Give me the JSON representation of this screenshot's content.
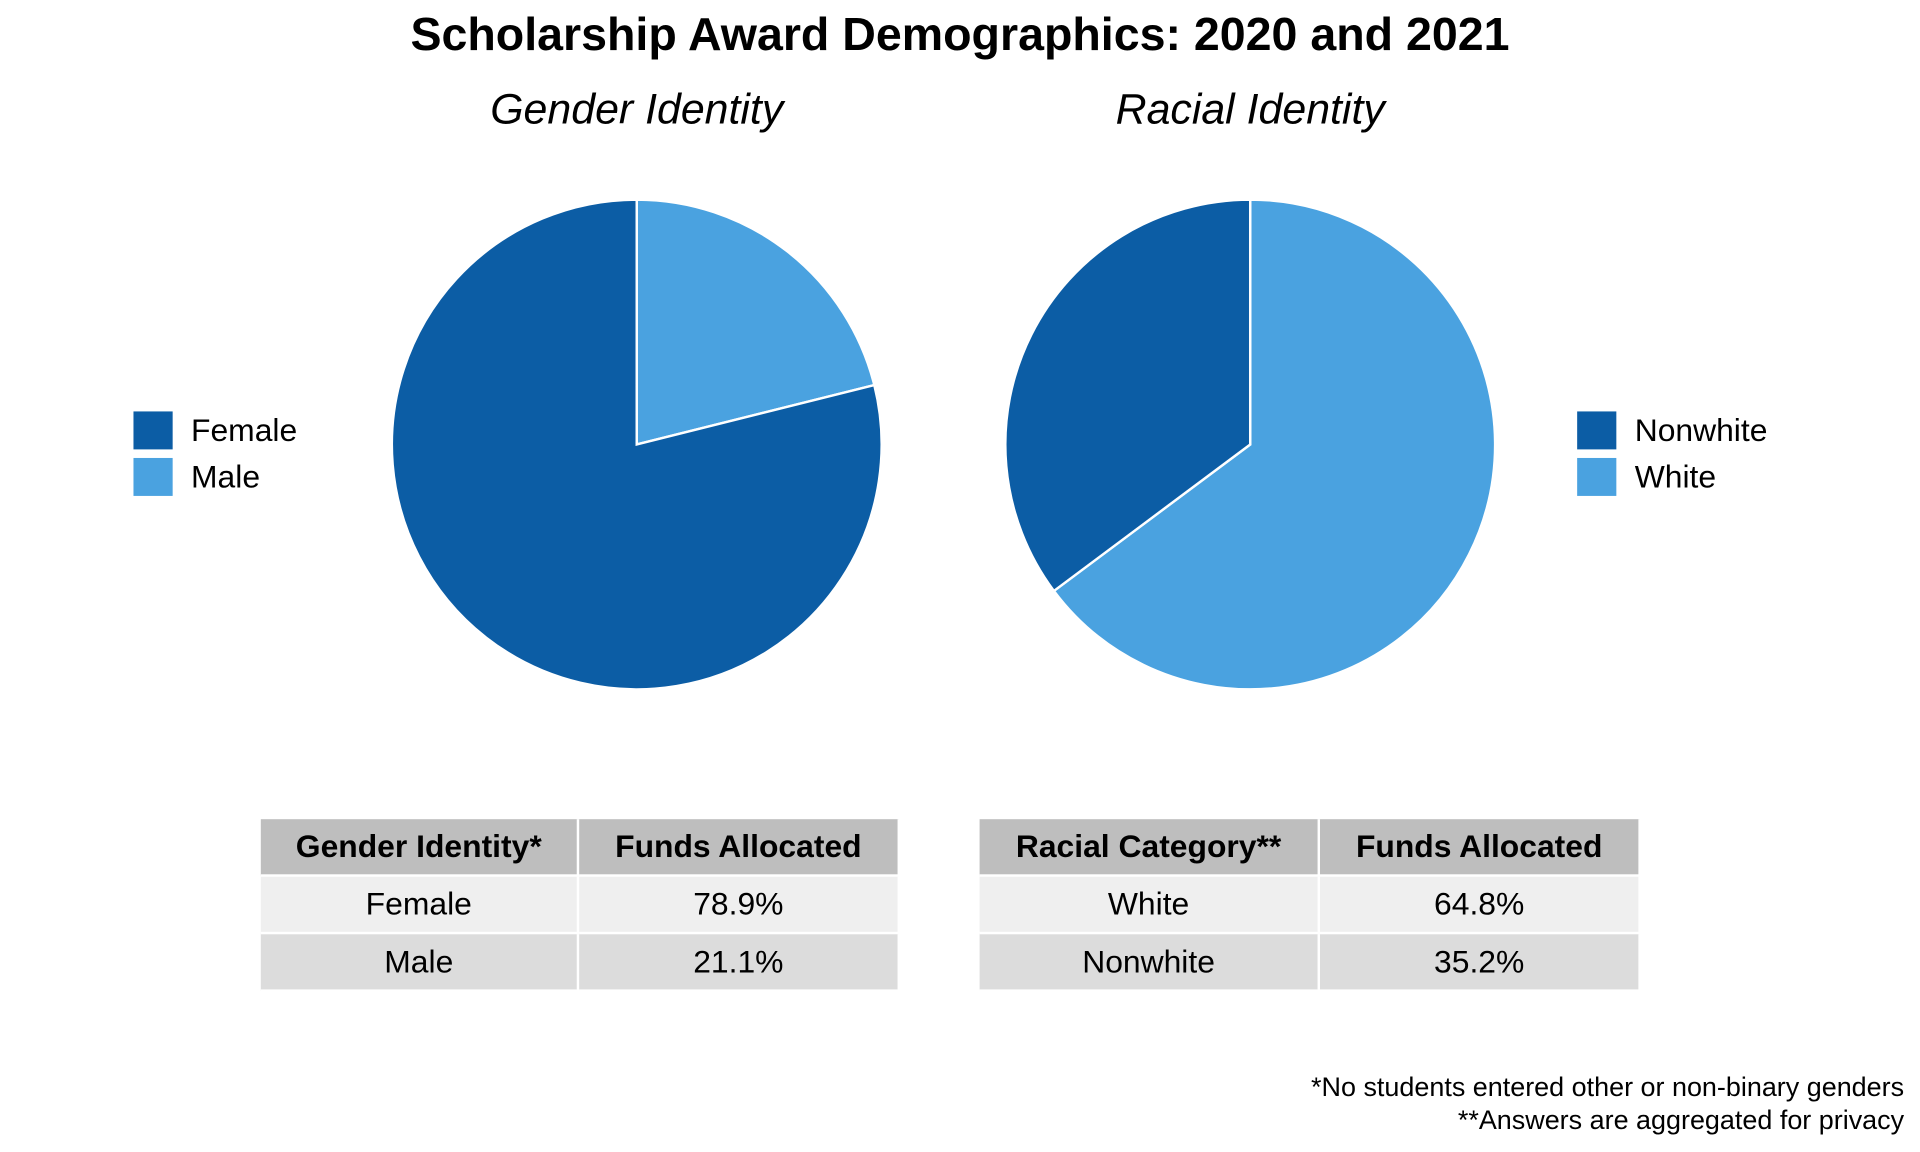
{
  "title": "Scholarship Award Demographics: 2020 and 2021",
  "chart_data": [
    {
      "type": "pie",
      "title": "Gender Identity",
      "categories": [
        "Female",
        "Male"
      ],
      "values": [
        78.9,
        21.1
      ],
      "colors": [
        "#0c5da5",
        "#4aa2e0"
      ],
      "legend": "left",
      "start": "top, clockwise from Male"
    },
    {
      "type": "pie",
      "title": "Racial Identity",
      "categories": [
        "Nonwhite",
        "White"
      ],
      "values": [
        35.2,
        64.8
      ],
      "colors": [
        "#0c5da5",
        "#4aa2e0"
      ],
      "legend": "right",
      "start": "top, clockwise from White"
    }
  ],
  "tables": [
    {
      "headers": [
        "Gender Identity*",
        "Funds Allocated"
      ],
      "rows": [
        [
          "Female",
          "78.9%"
        ],
        [
          "Male",
          "21.1%"
        ]
      ]
    },
    {
      "headers": [
        "Racial Category**",
        "Funds Allocated"
      ],
      "rows": [
        [
          "White",
          "64.8%"
        ],
        [
          "Nonwhite",
          "35.2%"
        ]
      ]
    }
  ],
  "footnotes": [
    "*No students entered other or non-binary genders",
    "**Answers are aggregated for privacy"
  ]
}
